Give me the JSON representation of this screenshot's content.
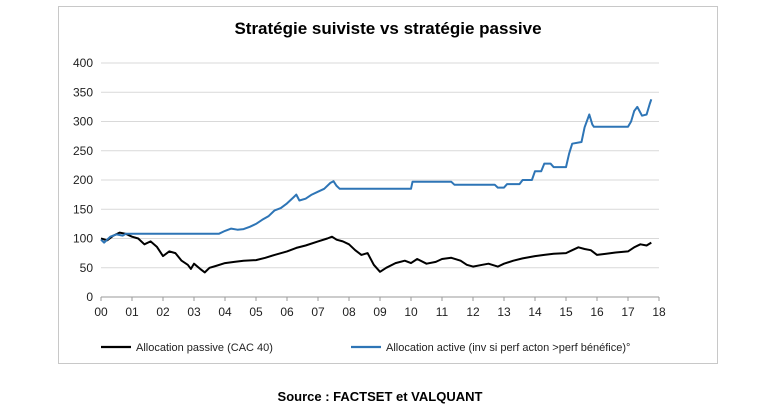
{
  "chart_data": {
    "type": "line",
    "title": "Stratégie suiviste vs stratégie passive",
    "xlabel": "",
    "ylabel": "",
    "xlim": [
      2000,
      2018
    ],
    "ylim": [
      0,
      400
    ],
    "x_ticks": [
      "00",
      "01",
      "02",
      "03",
      "04",
      "05",
      "06",
      "07",
      "08",
      "09",
      "10",
      "11",
      "12",
      "13",
      "14",
      "15",
      "16",
      "17",
      "18"
    ],
    "y_ticks": [
      "0",
      "50",
      "100",
      "150",
      "200",
      "250",
      "300",
      "350",
      "400"
    ],
    "grid": "horizontal",
    "legend_position": "bottom",
    "series": [
      {
        "name": "Allocation passive (CAC 40)",
        "color": "#000000",
        "points": [
          [
            2000.0,
            100
          ],
          [
            2000.2,
            97
          ],
          [
            2000.4,
            105
          ],
          [
            2000.6,
            110
          ],
          [
            2000.8,
            108
          ],
          [
            2001.0,
            103
          ],
          [
            2001.2,
            100
          ],
          [
            2001.4,
            90
          ],
          [
            2001.6,
            95
          ],
          [
            2001.8,
            86
          ],
          [
            2002.0,
            70
          ],
          [
            2002.2,
            78
          ],
          [
            2002.4,
            75
          ],
          [
            2002.6,
            62
          ],
          [
            2002.8,
            55
          ],
          [
            2002.9,
            48
          ],
          [
            2003.0,
            57
          ],
          [
            2003.2,
            48
          ],
          [
            2003.35,
            42
          ],
          [
            2003.5,
            50
          ],
          [
            2003.7,
            53
          ],
          [
            2004.0,
            58
          ],
          [
            2004.3,
            60
          ],
          [
            2004.6,
            62
          ],
          [
            2005.0,
            63
          ],
          [
            2005.3,
            67
          ],
          [
            2005.6,
            72
          ],
          [
            2006.0,
            78
          ],
          [
            2006.3,
            84
          ],
          [
            2006.6,
            88
          ],
          [
            2007.0,
            95
          ],
          [
            2007.3,
            100
          ],
          [
            2007.45,
            103
          ],
          [
            2007.6,
            98
          ],
          [
            2007.8,
            95
          ],
          [
            2008.0,
            90
          ],
          [
            2008.2,
            80
          ],
          [
            2008.4,
            72
          ],
          [
            2008.6,
            75
          ],
          [
            2008.8,
            55
          ],
          [
            2009.0,
            43
          ],
          [
            2009.2,
            50
          ],
          [
            2009.5,
            58
          ],
          [
            2009.8,
            62
          ],
          [
            2010.0,
            58
          ],
          [
            2010.2,
            65
          ],
          [
            2010.5,
            57
          ],
          [
            2010.8,
            60
          ],
          [
            2011.0,
            65
          ],
          [
            2011.3,
            67
          ],
          [
            2011.6,
            62
          ],
          [
            2011.8,
            55
          ],
          [
            2012.0,
            52
          ],
          [
            2012.3,
            55
          ],
          [
            2012.5,
            57
          ],
          [
            2012.8,
            52
          ],
          [
            2013.0,
            57
          ],
          [
            2013.3,
            62
          ],
          [
            2013.6,
            66
          ],
          [
            2014.0,
            70
          ],
          [
            2014.3,
            72
          ],
          [
            2014.6,
            74
          ],
          [
            2015.0,
            75
          ],
          [
            2015.2,
            80
          ],
          [
            2015.4,
            85
          ],
          [
            2015.6,
            82
          ],
          [
            2015.8,
            80
          ],
          [
            2016.0,
            72
          ],
          [
            2016.3,
            74
          ],
          [
            2016.6,
            76
          ],
          [
            2017.0,
            78
          ],
          [
            2017.2,
            85
          ],
          [
            2017.4,
            90
          ],
          [
            2017.6,
            88
          ],
          [
            2017.75,
            93
          ]
        ]
      },
      {
        "name": "Allocation active (inv si perf acton >perf bénéfice)°",
        "color": "#2e75b6",
        "points": [
          [
            2000.0,
            98
          ],
          [
            2000.1,
            93
          ],
          [
            2000.3,
            103
          ],
          [
            2000.5,
            107
          ],
          [
            2000.7,
            105
          ],
          [
            2000.8,
            108
          ],
          [
            2001.0,
            108
          ],
          [
            2002.0,
            108
          ],
          [
            2003.0,
            108
          ],
          [
            2003.8,
            108
          ],
          [
            2004.0,
            113
          ],
          [
            2004.2,
            117
          ],
          [
            2004.4,
            115
          ],
          [
            2004.6,
            116
          ],
          [
            2004.8,
            120
          ],
          [
            2005.0,
            125
          ],
          [
            2005.2,
            132
          ],
          [
            2005.4,
            138
          ],
          [
            2005.6,
            148
          ],
          [
            2005.8,
            152
          ],
          [
            2006.0,
            160
          ],
          [
            2006.2,
            170
          ],
          [
            2006.3,
            175
          ],
          [
            2006.4,
            165
          ],
          [
            2006.6,
            168
          ],
          [
            2006.8,
            175
          ],
          [
            2007.0,
            180
          ],
          [
            2007.2,
            185
          ],
          [
            2007.4,
            195
          ],
          [
            2007.5,
            198
          ],
          [
            2007.6,
            190
          ],
          [
            2007.7,
            185
          ],
          [
            2008.0,
            185
          ],
          [
            2009.0,
            185
          ],
          [
            2010.0,
            185
          ],
          [
            2010.05,
            197
          ],
          [
            2011.0,
            197
          ],
          [
            2011.3,
            197
          ],
          [
            2011.4,
            192
          ],
          [
            2012.0,
            192
          ],
          [
            2012.7,
            192
          ],
          [
            2012.8,
            187
          ],
          [
            2013.0,
            187
          ],
          [
            2013.1,
            193
          ],
          [
            2013.5,
            193
          ],
          [
            2013.6,
            200
          ],
          [
            2013.9,
            200
          ],
          [
            2014.0,
            215
          ],
          [
            2014.2,
            215
          ],
          [
            2014.3,
            228
          ],
          [
            2014.5,
            228
          ],
          [
            2014.6,
            222
          ],
          [
            2015.0,
            222
          ],
          [
            2015.1,
            245
          ],
          [
            2015.2,
            262
          ],
          [
            2015.5,
            265
          ],
          [
            2015.6,
            290
          ],
          [
            2015.75,
            312
          ],
          [
            2015.85,
            295
          ],
          [
            2015.9,
            291
          ],
          [
            2016.5,
            291
          ],
          [
            2017.0,
            291
          ],
          [
            2017.1,
            300
          ],
          [
            2017.2,
            318
          ],
          [
            2017.3,
            325
          ],
          [
            2017.45,
            310
          ],
          [
            2017.6,
            312
          ],
          [
            2017.7,
            330
          ],
          [
            2017.75,
            338
          ]
        ]
      }
    ]
  },
  "source": "Source : FACTSET et VALQUANT"
}
